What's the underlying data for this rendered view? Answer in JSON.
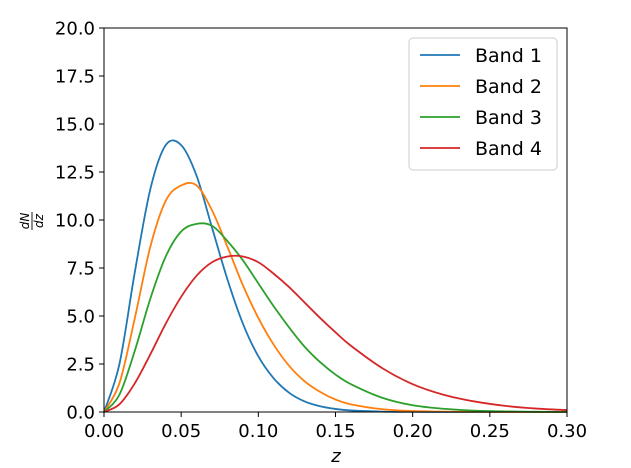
{
  "chart_data": {
    "type": "line",
    "title": "",
    "xlabel": "z",
    "ylabel": "dN/dz",
    "ylabel_numerator": "dN",
    "ylabel_denominator": "dz",
    "xlim": [
      0.0,
      0.3
    ],
    "ylim": [
      0.0,
      20.0
    ],
    "x_ticks": [
      0.0,
      0.05,
      0.1,
      0.15,
      0.2,
      0.25,
      0.3
    ],
    "x_tick_labels": [
      "0.00",
      "0.05",
      "0.10",
      "0.15",
      "0.20",
      "0.25",
      "0.30"
    ],
    "y_ticks": [
      0.0,
      2.5,
      5.0,
      7.5,
      10.0,
      12.5,
      15.0,
      17.5,
      20.0
    ],
    "y_tick_labels": [
      "0.0",
      "2.5",
      "5.0",
      "7.5",
      "10.0",
      "12.5",
      "15.0",
      "17.5",
      "20.0"
    ],
    "grid": false,
    "legend_position": "top-right",
    "x": [
      0.0,
      0.01,
      0.02,
      0.03,
      0.04,
      0.05,
      0.06,
      0.07,
      0.08,
      0.09,
      0.1,
      0.11,
      0.12,
      0.13,
      0.14,
      0.15,
      0.16,
      0.18,
      0.2,
      0.22,
      0.24,
      0.26,
      0.28,
      0.3
    ],
    "series": [
      {
        "name": "Band 1",
        "color": "#1f77b4",
        "values": [
          0.0,
          2.5,
          7.3,
          11.6,
          13.9,
          13.9,
          12.3,
          9.6,
          6.9,
          4.6,
          2.9,
          1.75,
          1.0,
          0.55,
          0.3,
          0.16,
          0.08,
          0.02,
          0.005,
          0.0,
          0.0,
          0.0,
          0.0,
          0.0
        ]
      },
      {
        "name": "Band 2",
        "color": "#ff7f0e",
        "values": [
          0.0,
          1.5,
          4.9,
          8.6,
          11.0,
          11.8,
          11.8,
          10.5,
          8.6,
          6.6,
          4.9,
          3.5,
          2.4,
          1.6,
          1.05,
          0.65,
          0.4,
          0.15,
          0.05,
          0.02,
          0.005,
          0.0,
          0.0,
          0.0
        ]
      },
      {
        "name": "Band 3",
        "color": "#2ca02c",
        "values": [
          0.0,
          0.9,
          3.2,
          5.9,
          8.1,
          9.4,
          9.8,
          9.7,
          8.9,
          7.9,
          6.7,
          5.5,
          4.4,
          3.4,
          2.6,
          1.95,
          1.45,
          0.75,
          0.35,
          0.17,
          0.07,
          0.03,
          0.01,
          0.0
        ]
      },
      {
        "name": "Band 4",
        "color": "#d62728",
        "values": [
          0.0,
          0.4,
          1.5,
          3.0,
          4.6,
          6.0,
          7.1,
          7.8,
          8.1,
          8.1,
          7.8,
          7.2,
          6.5,
          5.7,
          4.9,
          4.15,
          3.45,
          2.3,
          1.45,
          0.9,
          0.55,
          0.32,
          0.18,
          0.1
        ]
      }
    ]
  }
}
